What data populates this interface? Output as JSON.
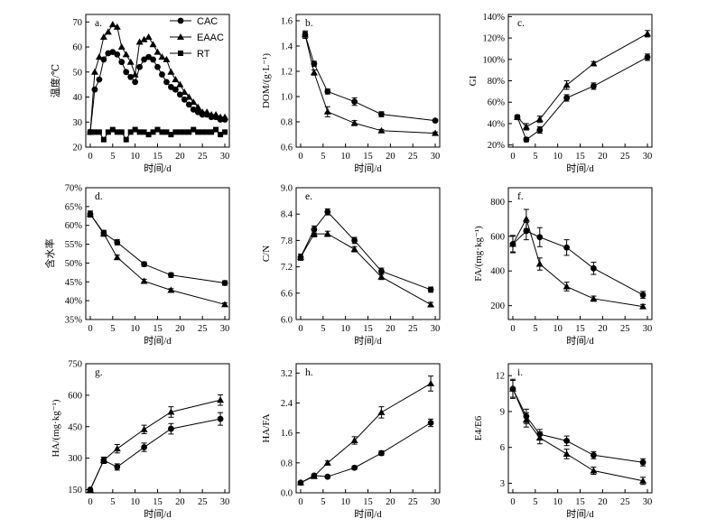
{
  "figure": {
    "series_names": {
      "cac": "CAC",
      "eaac": "EAAC",
      "rt": "RT"
    },
    "time_label": "时间/d",
    "colors": {
      "line": "#000000",
      "background": "#ffffff"
    }
  },
  "chart_data": [
    {
      "type": "line",
      "id": "a",
      "panel_label": "a.",
      "ylabel": "温度/℃",
      "xlabel": "时间/d",
      "xlim": [
        -1,
        31
      ],
      "xticks": [
        0,
        5,
        10,
        15,
        20,
        25,
        30
      ],
      "ylim": [
        20,
        73
      ],
      "yticks": [
        20,
        30,
        40,
        50,
        60,
        70
      ],
      "legend": "top-right",
      "series": [
        {
          "name": "CAC",
          "marker": "circle",
          "x": [
            0,
            1,
            2,
            3,
            4,
            5,
            6,
            7,
            8,
            9,
            10,
            11,
            12,
            13,
            14,
            15,
            16,
            17,
            18,
            19,
            20,
            21,
            22,
            23,
            24,
            25,
            26,
            27,
            28,
            29,
            30
          ],
          "y": [
            26,
            43,
            47,
            55,
            57.5,
            58,
            57,
            54,
            50,
            48,
            46,
            52,
            55,
            56,
            55,
            52,
            49,
            46,
            44,
            43,
            41,
            39,
            37,
            35,
            34,
            33,
            33,
            32,
            32,
            31,
            31
          ]
        },
        {
          "name": "EAAC",
          "marker": "triangle",
          "x": [
            0,
            1,
            2,
            3,
            4,
            5,
            6,
            7,
            8,
            9,
            10,
            11,
            12,
            13,
            14,
            15,
            16,
            17,
            18,
            19,
            20,
            21,
            22,
            23,
            24,
            25,
            26,
            27,
            28,
            29,
            30
          ],
          "y": [
            26,
            50,
            56,
            64,
            66,
            69,
            68,
            60,
            57,
            54,
            49,
            62,
            63,
            64,
            61,
            58,
            56,
            55,
            50,
            47,
            45,
            42,
            40,
            38,
            36,
            34,
            34,
            33,
            33,
            32,
            32
          ]
        },
        {
          "name": "RT",
          "marker": "square",
          "x": [
            0,
            1,
            2,
            3,
            4,
            5,
            6,
            7,
            8,
            9,
            10,
            11,
            12,
            13,
            14,
            15,
            16,
            17,
            18,
            19,
            20,
            21,
            22,
            23,
            24,
            25,
            26,
            27,
            28,
            29,
            30
          ],
          "y": [
            26,
            26,
            26,
            23,
            26,
            27,
            26,
            26,
            23,
            26,
            27,
            26,
            26,
            25,
            26,
            27,
            26,
            26,
            25,
            26,
            26,
            26,
            26,
            27,
            26,
            26,
            26,
            26,
            27,
            25,
            26
          ]
        }
      ]
    },
    {
      "type": "line",
      "id": "b",
      "panel_label": "b.",
      "ylabel": "DOM/(g·L⁻¹)",
      "xlabel": "时间/d",
      "xlim": [
        -1,
        31
      ],
      "xticks": [
        0,
        5,
        10,
        15,
        20,
        25,
        30
      ],
      "ylim": [
        0.6,
        1.65
      ],
      "yticks": [
        0.6,
        0.8,
        1.0,
        1.2,
        1.4,
        1.6
      ],
      "series": [
        {
          "name": "CAC",
          "marker": "circle",
          "x": [
            1,
            3,
            6,
            12,
            18,
            30
          ],
          "y": [
            1.49,
            1.26,
            1.04,
            0.96,
            0.86,
            0.81
          ],
          "err": [
            0.02,
            0.02,
            0.02,
            0.03,
            0.02,
            0.01
          ]
        },
        {
          "name": "EAAC",
          "marker": "triangle",
          "x": [
            1,
            3,
            6,
            12,
            18,
            30
          ],
          "y": [
            1.49,
            1.19,
            0.88,
            0.79,
            0.73,
            0.71
          ],
          "err": [
            0.03,
            0.02,
            0.04,
            0.02,
            0.01,
            0.01
          ]
        }
      ]
    },
    {
      "type": "line",
      "id": "c",
      "panel_label": "c.",
      "ylabel": "GI",
      "xlabel": "时间/d",
      "xlim": [
        -1,
        31
      ],
      "xticks": [
        0,
        5,
        10,
        15,
        20,
        25,
        30
      ],
      "ylim": [
        0.18,
        1.42
      ],
      "yticks": [
        0.2,
        0.4,
        0.6,
        0.8,
        1.0,
        1.2,
        1.4
      ],
      "ytick_labels": [
        "20%",
        "40%",
        "60%",
        "80%",
        "100%",
        "120%",
        "140%"
      ],
      "series": [
        {
          "name": "CAC",
          "marker": "circle",
          "x": [
            1,
            3,
            6,
            12,
            18,
            30
          ],
          "y": [
            0.46,
            0.25,
            0.34,
            0.64,
            0.75,
            1.02
          ],
          "err": [
            0.02,
            0.02,
            0.03,
            0.03,
            0.03,
            0.03
          ]
        },
        {
          "name": "EAAC",
          "marker": "triangle",
          "x": [
            1,
            3,
            6,
            12,
            18,
            30
          ],
          "y": [
            0.46,
            0.37,
            0.44,
            0.76,
            0.96,
            1.24
          ],
          "err": [
            0.02,
            0.03,
            0.03,
            0.04,
            0.02,
            0.03
          ]
        }
      ]
    },
    {
      "type": "line",
      "id": "d",
      "panel_label": "d.",
      "ylabel": "含水率",
      "xlabel": "时间/d",
      "xlim": [
        -1,
        31
      ],
      "xticks": [
        0,
        5,
        10,
        15,
        20,
        25,
        30
      ],
      "ylim": [
        0.35,
        0.7
      ],
      "yticks": [
        0.35,
        0.4,
        0.45,
        0.5,
        0.55,
        0.6,
        0.65,
        0.7
      ],
      "ytick_labels": [
        "35%",
        "40%",
        "45%",
        "50%",
        "55%",
        "60%",
        "65%",
        "70%"
      ],
      "series": [
        {
          "name": "CAC",
          "marker": "circle",
          "x": [
            0,
            3,
            6,
            12,
            18,
            30
          ],
          "y": [
            0.63,
            0.58,
            0.555,
            0.497,
            0.468,
            0.447
          ],
          "err": [
            0.008,
            0.007,
            0.007,
            0.006,
            0.006,
            0.006
          ]
        },
        {
          "name": "EAAC",
          "marker": "triangle",
          "x": [
            0,
            3,
            6,
            12,
            18,
            30
          ],
          "y": [
            0.63,
            0.578,
            0.515,
            0.452,
            0.428,
            0.39
          ],
          "err": [
            0.008,
            0.007,
            0.006,
            0.005,
            0.004,
            0.004
          ]
        }
      ]
    },
    {
      "type": "line",
      "id": "e",
      "panel_label": "e.",
      "ylabel": "C/N",
      "xlabel": "时间/d",
      "xlim": [
        -1,
        31
      ],
      "xticks": [
        0,
        5,
        10,
        15,
        20,
        25,
        30
      ],
      "ylim": [
        6.0,
        9.0
      ],
      "yticks": [
        6.0,
        6.6,
        7.2,
        7.8,
        8.4,
        9.0
      ],
      "series": [
        {
          "name": "CAC",
          "marker": "circle",
          "x": [
            0,
            3,
            6,
            12,
            18,
            29
          ],
          "y": [
            7.42,
            8.05,
            8.45,
            7.8,
            7.1,
            6.68
          ],
          "err": [
            0.07,
            0.08,
            0.07,
            0.07,
            0.07,
            0.06
          ]
        },
        {
          "name": "EAAC",
          "marker": "triangle",
          "x": [
            0,
            3,
            6,
            12,
            18,
            29
          ],
          "y": [
            7.42,
            7.95,
            7.95,
            7.6,
            6.97,
            6.34
          ],
          "err": [
            0.07,
            0.07,
            0.06,
            0.06,
            0.06,
            0.05
          ]
        }
      ]
    },
    {
      "type": "line",
      "id": "f",
      "panel_label": "f.",
      "ylabel": "FA/(mg·kg⁻¹)",
      "xlabel": "时间/d",
      "xlim": [
        -1,
        31
      ],
      "xticks": [
        0,
        5,
        10,
        15,
        20,
        25,
        30
      ],
      "ylim": [
        120,
        880
      ],
      "yticks": [
        200,
        400,
        600,
        800
      ],
      "series": [
        {
          "name": "CAC",
          "marker": "circle",
          "x": [
            0,
            3,
            6,
            12,
            18,
            29
          ],
          "y": [
            555,
            630,
            595,
            535,
            415,
            262
          ],
          "err": [
            45,
            50,
            55,
            45,
            35,
            20
          ]
        },
        {
          "name": "EAAC",
          "marker": "triangle",
          "x": [
            0,
            3,
            6,
            12,
            18,
            29
          ],
          "y": [
            555,
            700,
            440,
            310,
            240,
            195
          ],
          "err": [
            50,
            55,
            35,
            25,
            15,
            12
          ]
        }
      ]
    },
    {
      "type": "line",
      "id": "g",
      "panel_label": "g.",
      "ylabel": "HA/(mg·kg⁻¹)",
      "xlabel": "时间/d",
      "xlim": [
        -1,
        31
      ],
      "xticks": [
        0,
        5,
        10,
        15,
        20,
        25,
        30
      ],
      "ylim": [
        135,
        750
      ],
      "yticks": [
        150,
        300,
        450,
        600,
        750
      ],
      "series": [
        {
          "name": "CAC",
          "marker": "circle",
          "x": [
            0,
            3,
            6,
            12,
            18,
            29
          ],
          "y": [
            150,
            290,
            258,
            352,
            440,
            487
          ],
          "err": [
            5,
            15,
            15,
            20,
            25,
            30
          ]
        },
        {
          "name": "EAAC",
          "marker": "triangle",
          "x": [
            0,
            3,
            6,
            12,
            18,
            29
          ],
          "y": [
            150,
            290,
            345,
            437,
            520,
            577
          ],
          "err": [
            5,
            15,
            20,
            20,
            25,
            25
          ]
        }
      ]
    },
    {
      "type": "line",
      "id": "h",
      "panel_label": "h.",
      "ylabel": "HA/FA",
      "xlabel": "时间/d",
      "xlim": [
        -1,
        31
      ],
      "xticks": [
        0,
        5,
        10,
        15,
        20,
        25,
        30
      ],
      "ylim": [
        0,
        3.45
      ],
      "yticks": [
        0,
        0.8,
        1.6,
        2.4,
        3.2
      ],
      "series": [
        {
          "name": "CAC",
          "marker": "circle",
          "x": [
            0,
            3,
            6,
            12,
            18,
            29
          ],
          "y": [
            0.27,
            0.46,
            0.43,
            0.67,
            1.06,
            1.87
          ],
          "err": [
            0.02,
            0.03,
            0.03,
            0.05,
            0.06,
            0.1
          ]
        },
        {
          "name": "EAAC",
          "marker": "triangle",
          "x": [
            0,
            3,
            6,
            12,
            18,
            29
          ],
          "y": [
            0.27,
            0.44,
            0.8,
            1.4,
            2.15,
            2.92
          ],
          "err": [
            0.02,
            0.03,
            0.05,
            0.1,
            0.15,
            0.2
          ]
        }
      ]
    },
    {
      "type": "line",
      "id": "i",
      "panel_label": "i.",
      "ylabel": "E4/E6",
      "xlabel": "时间/d",
      "xlim": [
        -1,
        31
      ],
      "xticks": [
        0,
        5,
        10,
        15,
        20,
        25,
        30
      ],
      "ylim": [
        2.2,
        13.0
      ],
      "yticks": [
        3,
        6,
        9,
        12
      ],
      "series": [
        {
          "name": "CAC",
          "marker": "circle",
          "x": [
            0,
            3,
            6,
            12,
            18,
            29
          ],
          "y": [
            10.9,
            8.6,
            7.1,
            6.55,
            5.35,
            4.75
          ],
          "err": [
            0.8,
            0.6,
            0.4,
            0.4,
            0.3,
            0.3
          ]
        },
        {
          "name": "EAAC",
          "marker": "triangle",
          "x": [
            0,
            3,
            6,
            12,
            18,
            29
          ],
          "y": [
            10.9,
            8.3,
            6.8,
            5.45,
            4.05,
            3.2
          ],
          "err": [
            0.7,
            0.6,
            0.5,
            0.4,
            0.3,
            0.3
          ]
        }
      ]
    }
  ]
}
